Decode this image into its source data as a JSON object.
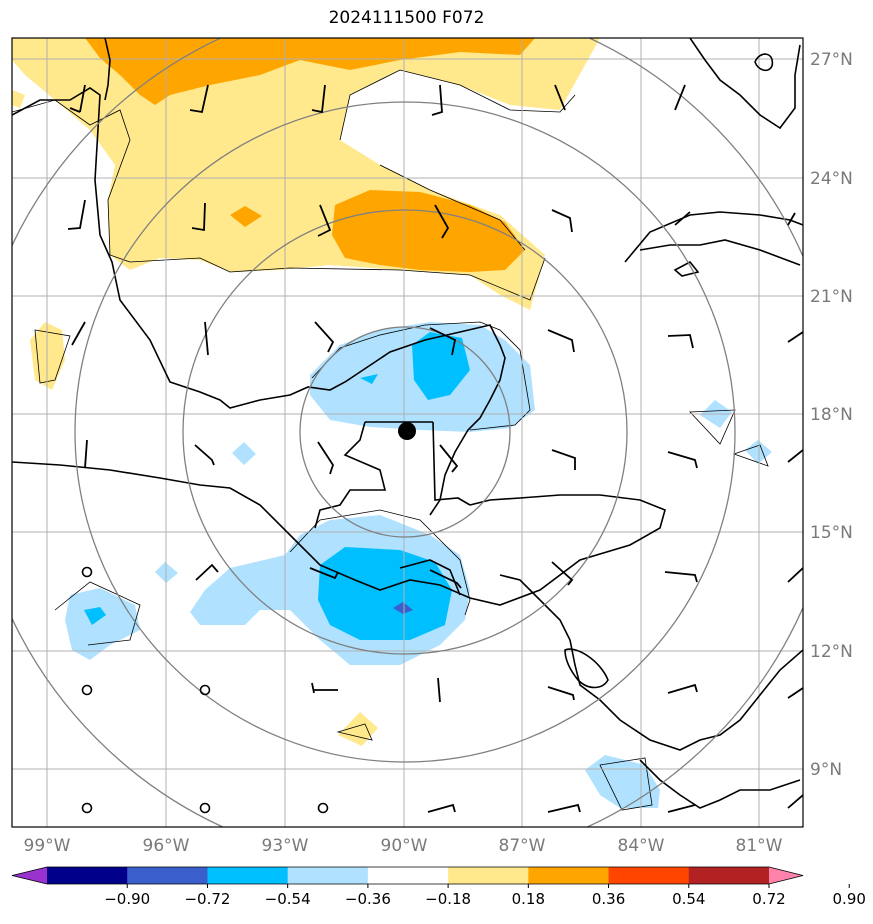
{
  "title": "2024111500 F072",
  "map": {
    "lat_labels": [
      "27°N",
      "24°N",
      "21°N",
      "18°N",
      "15°N",
      "12°N",
      "9°N"
    ],
    "lon_labels": [
      "99°W",
      "96°W",
      "93°W",
      "90°W",
      "87°W",
      "84°W",
      "81°W"
    ],
    "storm_center": {
      "lat": 17.5,
      "lon": -90.0
    },
    "colors": {
      "grid": "#b0b0b0",
      "coast": "#000000",
      "range_rings": "#808080"
    }
  },
  "colorbar": {
    "ticks": [
      "−0.90",
      "−0.72",
      "−0.54",
      "−0.36",
      "−0.18",
      "0.18",
      "0.36",
      "0.54",
      "0.72",
      "0.90"
    ],
    "colors": [
      "#9a32cd",
      "#00008b",
      "#3a5fcd",
      "#00bfff",
      "#b0e2ff",
      "#ffffff",
      "#ffe98c",
      "#ffa500",
      "#ff4500",
      "#b22222",
      "#ff82ab"
    ]
  }
}
